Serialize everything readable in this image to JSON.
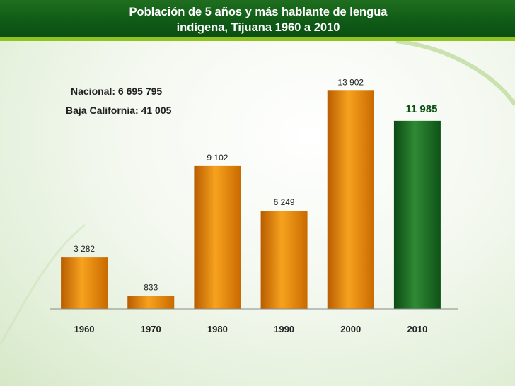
{
  "header": {
    "title": "Población de 5 años y más hablante de lengua\nindígena, Tijuana 1960 a 2010"
  },
  "notes": {
    "nacional": "Nacional: 6 695 795",
    "baja_california": "Baja California: 41 005"
  },
  "colors": {
    "bar_orange": "#e8840c",
    "bar_green": "#1b6b25",
    "header_green": "#0f5a16",
    "header_accent": "#8fc31f"
  },
  "chart_data": {
    "type": "bar",
    "title": "Población de 5 años y más hablante de lengua indígena, Tijuana 1960 a 2010",
    "xlabel": "",
    "ylabel": "",
    "categories": [
      "1960",
      "1970",
      "1980",
      "1990",
      "2000",
      "2010"
    ],
    "values": [
      3282,
      833,
      9102,
      6249,
      13902,
      11985
    ],
    "value_labels": [
      "3 282",
      "833",
      "9 102",
      "6 249",
      "13 902",
      "11 985"
    ],
    "highlight_index": 5,
    "ylim": [
      0,
      14500
    ],
    "grid": false,
    "legend": "none"
  }
}
